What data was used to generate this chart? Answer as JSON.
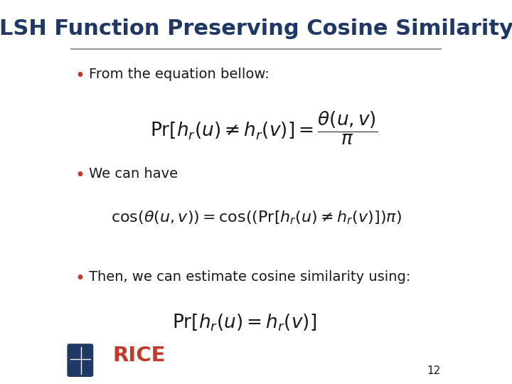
{
  "title": "LSH Function Preserving Cosine Similarity",
  "title_color": "#1F3864",
  "title_fontsize": 22,
  "bg_color": "#FFFFFF",
  "line_color": "#808080",
  "bullet_color": "#C0392B",
  "bullet1_text": "From the equation bellow:",
  "bullet2_text": "We can have",
  "bullet3_text": "Then, we can estimate cosine similarity using:",
  "text_color": "#1a1a1a",
  "text_fontsize": 14,
  "eq_fontsize": 16,
  "page_number": "12",
  "rice_text": "RICE",
  "rice_color": "#C0392B",
  "title_dark": "#1F3864"
}
